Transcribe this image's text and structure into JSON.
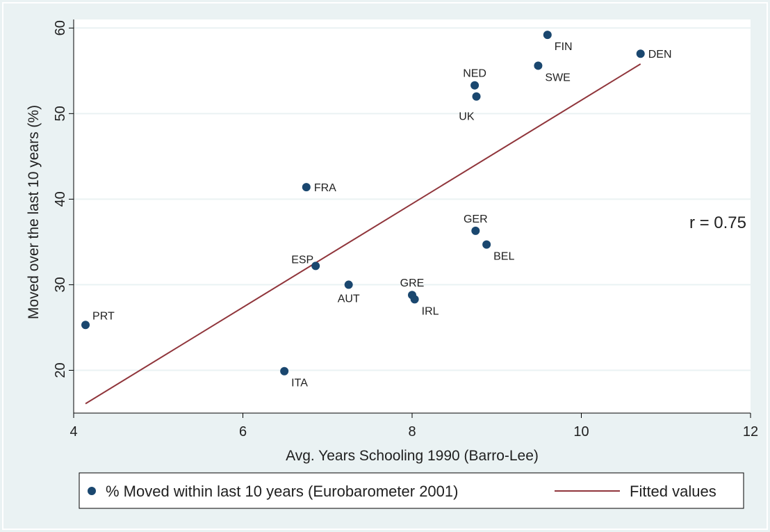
{
  "chart_data": {
    "type": "scatter",
    "title": "",
    "xlabel": "Avg. Years Schooling 1990 (Barro-Lee)",
    "ylabel": "Moved over the last 10 years (%)",
    "xlim": [
      4,
      12
    ],
    "ylim": [
      15,
      61
    ],
    "xticks": [
      4,
      6,
      8,
      10,
      12
    ],
    "yticks": [
      20,
      30,
      40,
      50,
      60
    ],
    "grid": "horizontal",
    "legend_position": "bottom",
    "annotation": "r = 0.75",
    "colors": {
      "points": "#1a476f",
      "fit": "#90353b",
      "background": "#eaf2f3",
      "plot": "#ffffff"
    },
    "series": [
      {
        "name": "% Moved within last 10 years (Eurobarometer 2001)",
        "kind": "scatter",
        "points": [
          {
            "label": "PRT",
            "x": 4.14,
            "y": 25.3,
            "label_pos": "ne"
          },
          {
            "label": "ITA",
            "x": 6.49,
            "y": 19.9,
            "label_pos": "se"
          },
          {
            "label": "FRA",
            "x": 6.75,
            "y": 41.4,
            "label_pos": "e"
          },
          {
            "label": "ESP",
            "x": 6.86,
            "y": 32.2,
            "label_pos": "nw"
          },
          {
            "label": "AUT",
            "x": 7.25,
            "y": 30.0,
            "label_pos": "s"
          },
          {
            "label": "GRE",
            "x": 8.0,
            "y": 28.8,
            "label_pos": "n"
          },
          {
            "label": "IRL",
            "x": 8.03,
            "y": 28.3,
            "label_pos": "se"
          },
          {
            "label": "NED",
            "x": 8.74,
            "y": 53.3,
            "label_pos": "n"
          },
          {
            "label": "UK",
            "x": 8.76,
            "y": 52.0,
            "label_pos": "sw"
          },
          {
            "label": "GER",
            "x": 8.75,
            "y": 36.3,
            "label_pos": "n"
          },
          {
            "label": "BEL",
            "x": 8.88,
            "y": 34.7,
            "label_pos": "se"
          },
          {
            "label": "SWE",
            "x": 9.49,
            "y": 55.6,
            "label_pos": "se"
          },
          {
            "label": "FIN",
            "x": 9.6,
            "y": 59.2,
            "label_pos": "se"
          },
          {
            "label": "DEN",
            "x": 10.7,
            "y": 57.0,
            "label_pos": "e"
          }
        ]
      },
      {
        "name": "Fitted values",
        "kind": "line",
        "points": [
          {
            "x": 4.14,
            "y": 16.1
          },
          {
            "x": 10.7,
            "y": 55.8
          }
        ]
      }
    ]
  }
}
